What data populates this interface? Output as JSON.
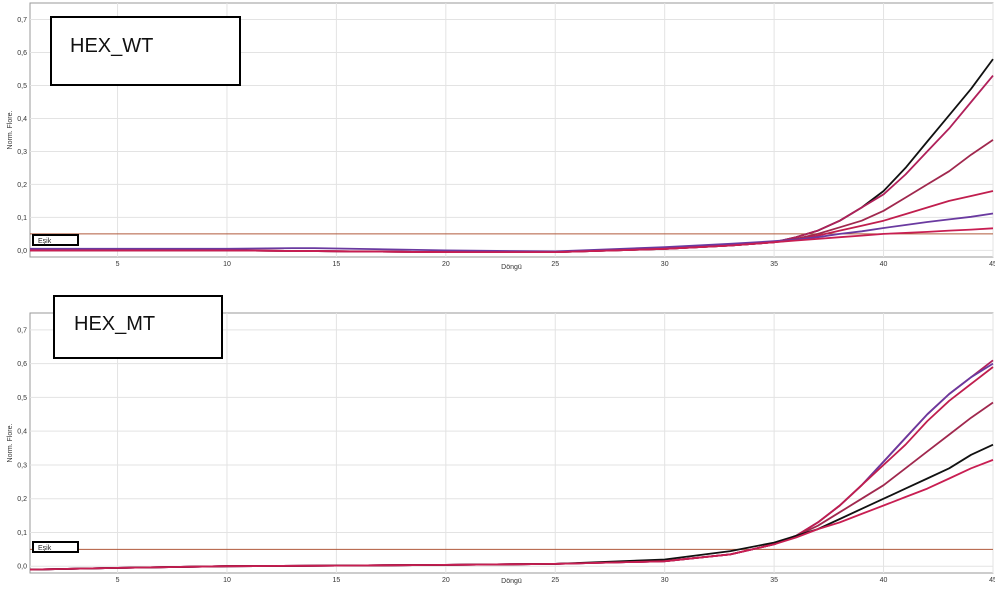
{
  "chart_data": [
    {
      "type": "line",
      "title": "HEX_WT",
      "xlabel": "Döngü",
      "ylabel": "Norm. Flore.",
      "xlim": [
        1,
        45
      ],
      "ylim": [
        -0.02,
        0.75
      ],
      "xticks": [
        "5",
        "10",
        "15",
        "20",
        "25",
        "30",
        "35",
        "40",
        "45"
      ],
      "yticks": [
        "0,0",
        "0,1",
        "0,2",
        "0,3",
        "0,4",
        "0,5",
        "0,6",
        "0,7"
      ],
      "grid": true,
      "threshold": {
        "label": "Eşik",
        "value": 0.05,
        "color": "#b05a3c"
      },
      "series": [
        {
          "color": "#111111",
          "x": [
            1,
            10,
            20,
            25,
            30,
            33,
            35,
            36,
            37,
            38,
            39,
            40,
            41,
            42,
            43,
            44,
            45
          ],
          "y": [
            0.0,
            0.0,
            -0.005,
            -0.005,
            0.005,
            0.015,
            0.025,
            0.04,
            0.06,
            0.09,
            0.13,
            0.18,
            0.25,
            0.33,
            0.41,
            0.49,
            0.58
          ]
        },
        {
          "color": "#b0205a",
          "x": [
            1,
            10,
            20,
            25,
            30,
            33,
            35,
            36,
            37,
            38,
            39,
            40,
            41,
            42,
            43,
            44,
            45
          ],
          "y": [
            0.0,
            0.0,
            -0.005,
            -0.005,
            0.005,
            0.015,
            0.025,
            0.04,
            0.06,
            0.09,
            0.13,
            0.17,
            0.23,
            0.3,
            0.37,
            0.45,
            0.53
          ]
        },
        {
          "color": "#a0284e",
          "x": [
            1,
            10,
            20,
            25,
            30,
            33,
            35,
            36,
            37,
            38,
            39,
            40,
            41,
            42,
            43,
            44,
            45
          ],
          "y": [
            0.0,
            0.0,
            -0.005,
            -0.005,
            0.005,
            0.015,
            0.025,
            0.035,
            0.05,
            0.07,
            0.09,
            0.12,
            0.16,
            0.2,
            0.24,
            0.29,
            0.335
          ]
        },
        {
          "color": "#c01e4e",
          "x": [
            1,
            10,
            20,
            25,
            30,
            33,
            35,
            36,
            37,
            38,
            39,
            40,
            41,
            42,
            43,
            44,
            45
          ],
          "y": [
            0.0,
            0.0,
            -0.005,
            -0.005,
            0.005,
            0.015,
            0.025,
            0.032,
            0.045,
            0.06,
            0.075,
            0.09,
            0.11,
            0.13,
            0.15,
            0.165,
            0.18
          ]
        },
        {
          "color": "#6a3aa0",
          "x": [
            1,
            10,
            13,
            14,
            20,
            25,
            30,
            33,
            35,
            36,
            37,
            38,
            39,
            40,
            41,
            42,
            43,
            44,
            45
          ],
          "y": [
            0.005,
            0.005,
            0.007,
            0.007,
            0.0,
            -0.003,
            0.01,
            0.02,
            0.028,
            0.033,
            0.04,
            0.05,
            0.058,
            0.068,
            0.077,
            0.086,
            0.094,
            0.102,
            0.112
          ]
        },
        {
          "color": "#c81e52",
          "x": [
            1,
            10,
            20,
            25,
            30,
            33,
            35,
            36,
            37,
            38,
            39,
            40,
            41,
            42,
            43,
            44,
            45
          ],
          "y": [
            0.0,
            0.0,
            -0.005,
            -0.005,
            0.005,
            0.015,
            0.025,
            0.03,
            0.035,
            0.04,
            0.045,
            0.05,
            0.053,
            0.056,
            0.06,
            0.063,
            0.067
          ]
        }
      ]
    },
    {
      "type": "line",
      "title": "HEX_MT",
      "xlabel": "Döngü",
      "ylabel": "Norm. Flore.",
      "xlim": [
        1,
        45
      ],
      "ylim": [
        -0.02,
        0.75
      ],
      "xticks": [
        "5",
        "10",
        "15",
        "20",
        "25",
        "30",
        "35",
        "40",
        "45"
      ],
      "yticks": [
        "0,0",
        "0,1",
        "0,2",
        "0,3",
        "0,4",
        "0,5",
        "0,6",
        "0,7"
      ],
      "grid": true,
      "threshold": {
        "label": "Eşik",
        "value": 0.05,
        "color": "#b05a3c"
      },
      "series": [
        {
          "color": "#b0205a",
          "x": [
            1,
            5,
            10,
            15,
            20,
            25,
            30,
            33,
            35,
            36,
            37,
            38,
            39,
            40,
            41,
            42,
            43,
            44,
            45
          ],
          "y": [
            -0.01,
            -0.005,
            0.0,
            0.002,
            0.004,
            0.007,
            0.015,
            0.035,
            0.065,
            0.09,
            0.13,
            0.18,
            0.24,
            0.31,
            0.38,
            0.45,
            0.51,
            0.56,
            0.61
          ]
        },
        {
          "color": "#6a3aa0",
          "x": [
            1,
            5,
            10,
            15,
            20,
            25,
            30,
            33,
            35,
            36,
            37,
            38,
            39,
            40,
            41,
            42,
            43,
            44,
            45
          ],
          "y": [
            -0.01,
            -0.005,
            0.0,
            0.002,
            0.004,
            0.007,
            0.015,
            0.035,
            0.065,
            0.09,
            0.13,
            0.18,
            0.24,
            0.31,
            0.38,
            0.45,
            0.51,
            0.56,
            0.6
          ]
        },
        {
          "color": "#c01e4e",
          "x": [
            1,
            5,
            10,
            15,
            20,
            25,
            30,
            33,
            35,
            36,
            37,
            38,
            39,
            40,
            41,
            42,
            43,
            44,
            45
          ],
          "y": [
            -0.01,
            -0.005,
            0.0,
            0.002,
            0.004,
            0.007,
            0.015,
            0.035,
            0.065,
            0.09,
            0.13,
            0.18,
            0.24,
            0.3,
            0.36,
            0.43,
            0.49,
            0.54,
            0.59
          ]
        },
        {
          "color": "#a0284e",
          "x": [
            1,
            5,
            10,
            15,
            20,
            25,
            30,
            33,
            35,
            36,
            37,
            38,
            39,
            40,
            41,
            42,
            43,
            44,
            45
          ],
          "y": [
            -0.01,
            -0.005,
            0.0,
            0.002,
            0.004,
            0.007,
            0.015,
            0.035,
            0.065,
            0.09,
            0.12,
            0.16,
            0.2,
            0.24,
            0.29,
            0.34,
            0.39,
            0.44,
            0.485
          ]
        },
        {
          "color": "#111111",
          "x": [
            1,
            5,
            10,
            15,
            20,
            25,
            30,
            33,
            35,
            36,
            37,
            38,
            39,
            40,
            41,
            42,
            43,
            44,
            45
          ],
          "y": [
            -0.01,
            -0.005,
            0.0,
            0.002,
            0.004,
            0.007,
            0.02,
            0.045,
            0.07,
            0.09,
            0.11,
            0.14,
            0.17,
            0.2,
            0.23,
            0.26,
            0.29,
            0.33,
            0.36
          ]
        },
        {
          "color": "#c81e52",
          "x": [
            1,
            5,
            10,
            15,
            20,
            25,
            30,
            33,
            35,
            36,
            37,
            38,
            39,
            40,
            41,
            42,
            43,
            44,
            45
          ],
          "y": [
            -0.01,
            -0.005,
            0.0,
            0.002,
            0.004,
            0.007,
            0.015,
            0.035,
            0.065,
            0.085,
            0.11,
            0.13,
            0.155,
            0.18,
            0.205,
            0.23,
            0.26,
            0.29,
            0.315
          ]
        }
      ]
    }
  ]
}
